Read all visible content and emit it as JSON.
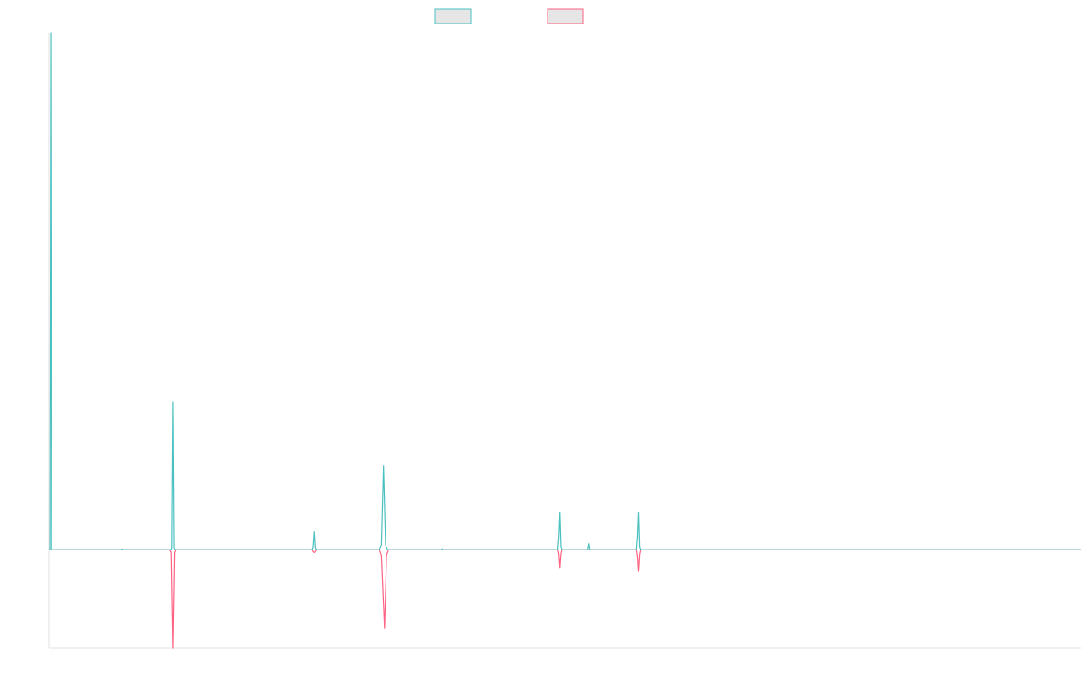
{
  "chart_data": {
    "type": "line",
    "title": "",
    "xlabel": "",
    "ylabel": "",
    "grid": false,
    "legend_position": "top-center",
    "xlim": [
      0,
      1000
    ],
    "ylim": [
      -100,
      525
    ],
    "series": [
      {
        "name": "",
        "color": "#4bc0c0",
        "legend_fill": "#e6e6e6",
        "points": [
          [
            0,
            0
          ],
          [
            1,
            0
          ],
          [
            1.8,
            525
          ],
          [
            2.5,
            0
          ],
          [
            70,
            0
          ],
          [
            71,
            0.8
          ],
          [
            72,
            0
          ],
          [
            118,
            0
          ],
          [
            119,
            1
          ],
          [
            120,
            150
          ],
          [
            121,
            2
          ],
          [
            122,
            0
          ],
          [
            255,
            0
          ],
          [
            256,
            3
          ],
          [
            257,
            18
          ],
          [
            258,
            2
          ],
          [
            259,
            0
          ],
          [
            320,
            0
          ],
          [
            322,
            5
          ],
          [
            324,
            85
          ],
          [
            326,
            5
          ],
          [
            328,
            0
          ],
          [
            380,
            0
          ],
          [
            381,
            1
          ],
          [
            382,
            0
          ],
          [
            493,
            0
          ],
          [
            494,
            12
          ],
          [
            495,
            38
          ],
          [
            496,
            3
          ],
          [
            497,
            0
          ],
          [
            522,
            0
          ],
          [
            523,
            6
          ],
          [
            524,
            0
          ],
          [
            569,
            0
          ],
          [
            570,
            12
          ],
          [
            571,
            38
          ],
          [
            572,
            3
          ],
          [
            573,
            0
          ],
          [
            1000,
            0
          ]
        ]
      },
      {
        "name": "",
        "color": "#ff6384",
        "legend_fill": "#e6e6e6",
        "points": [
          [
            0,
            0
          ],
          [
            117,
            0
          ],
          [
            118.5,
            -3
          ],
          [
            120,
            -100
          ],
          [
            121.5,
            -3
          ],
          [
            123,
            0
          ],
          [
            255,
            0
          ],
          [
            256,
            -2
          ],
          [
            257,
            -3
          ],
          [
            258,
            -2
          ],
          [
            259,
            0
          ],
          [
            320,
            0
          ],
          [
            322,
            -6
          ],
          [
            325,
            -80
          ],
          [
            327,
            -6
          ],
          [
            329,
            0
          ],
          [
            493,
            0
          ],
          [
            494,
            -4
          ],
          [
            495,
            -18
          ],
          [
            496,
            -4
          ],
          [
            497,
            0
          ],
          [
            569,
            0
          ],
          [
            570,
            -6
          ],
          [
            571,
            -22
          ],
          [
            572,
            -5
          ],
          [
            573,
            0
          ],
          [
            1000,
            0
          ]
        ]
      }
    ]
  }
}
